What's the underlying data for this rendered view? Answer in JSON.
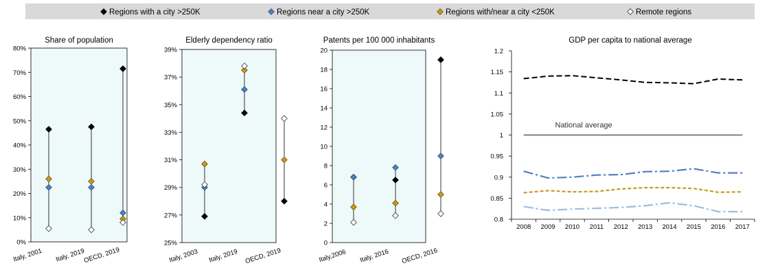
{
  "legend": {
    "items": [
      {
        "label": "Regions with a city >250K",
        "color": "#000000",
        "fill": "#000000"
      },
      {
        "label": "Regions near a city >250K",
        "color": "#2f4f7f",
        "fill": "#4f81bd"
      },
      {
        "label": "Regions with/near a city <250K",
        "color": "#6b4e00",
        "fill": "#c89a1e"
      },
      {
        "label": "Remote regions",
        "color": "#333333",
        "fill": "#ffffff"
      }
    ]
  },
  "colors": {
    "panel_bg": "#eef9f9",
    "legend_bg": "#d9d9d9",
    "with_city": "#000000",
    "near_city": "#4f81bd",
    "small_city": "#c89a1e",
    "remote": "#ffffff",
    "line_remote": "#9dbce0",
    "national_avg": "#7f7f7f"
  },
  "chart_data": [
    {
      "type": "scatter",
      "title": "Share of population",
      "categories": [
        "Italy, 2001",
        "Italy, 2019",
        "OECD, 2019"
      ],
      "ylim": [
        0,
        80
      ],
      "yticks": [
        0,
        10,
        20,
        30,
        40,
        50,
        60,
        70,
        80
      ],
      "ytick_labels": [
        "0%",
        "10%",
        "20%",
        "30%",
        "40%",
        "50%",
        "60%",
        "70%",
        "80%"
      ],
      "series": [
        {
          "name": "Regions with a city >250K",
          "values": [
            46.5,
            47.5,
            71.5
          ]
        },
        {
          "name": "Regions near a city >250K",
          "values": [
            22.5,
            22.5,
            12
          ]
        },
        {
          "name": "Regions with/near a city <250K",
          "values": [
            26,
            25,
            9.5
          ]
        },
        {
          "name": "Remote regions",
          "values": [
            5.5,
            5,
            8
          ]
        }
      ]
    },
    {
      "type": "scatter",
      "title": "Elderly dependency ratio",
      "categories": [
        "Italy, 2003",
        "Italy, 2019",
        "OECD, 2019"
      ],
      "ylim": [
        25,
        39
      ],
      "yticks": [
        25,
        27,
        29,
        31,
        33,
        35,
        37,
        39
      ],
      "ytick_labels": [
        "25%",
        "27%",
        "29%",
        "31%",
        "33%",
        "35%",
        "37%",
        "39%"
      ],
      "series": [
        {
          "name": "Regions with a city >250K",
          "values": [
            26.9,
            34.4,
            28
          ]
        },
        {
          "name": "Regions near a city >250K",
          "values": [
            29,
            36.1,
            null
          ]
        },
        {
          "name": "Regions with/near a city <250K",
          "values": [
            30.7,
            37.5,
            31
          ]
        },
        {
          "name": "Remote regions",
          "values": [
            29.2,
            37.8,
            34
          ]
        }
      ]
    },
    {
      "type": "scatter",
      "title": "Patents per 100 000 inhabitants",
      "categories": [
        "Italy,2006",
        "Italy, 2016",
        "OECD, 2016"
      ],
      "ylim": [
        0,
        20
      ],
      "yticks": [
        0,
        2,
        4,
        6,
        8,
        10,
        12,
        14,
        16,
        18,
        20
      ],
      "ytick_labels": [
        "0",
        "2",
        "4",
        "6",
        "8",
        "10",
        "12",
        "14",
        "16",
        "18",
        "20"
      ],
      "series": [
        {
          "name": "Regions with a city >250K",
          "values": [
            6.8,
            6.5,
            19
          ]
        },
        {
          "name": "Regions near a city >250K",
          "values": [
            6.8,
            7.8,
            9
          ]
        },
        {
          "name": "Regions with/near a city <250K",
          "values": [
            3.7,
            4.1,
            5
          ]
        },
        {
          "name": "Remote regions",
          "values": [
            2.1,
            2.8,
            3
          ]
        }
      ]
    },
    {
      "type": "line",
      "title": "GDP per capita to national average",
      "x": [
        "2008",
        "2009",
        "2010",
        "2011",
        "2012",
        "2013",
        "2014",
        "2015",
        "2016",
        "2017"
      ],
      "ylim": [
        0.8,
        1.2
      ],
      "yticks": [
        0.8,
        0.85,
        0.9,
        0.95,
        1,
        1.05,
        1.1,
        1.15,
        1.2
      ],
      "ytick_labels": [
        "0.8",
        "0.85",
        "0.9",
        "0.95",
        "1",
        "1.05",
        "1.1",
        "1.15",
        "1.2"
      ],
      "annotation": "National average",
      "series": [
        {
          "name": "Regions with a city >250K",
          "values": [
            1.134,
            1.14,
            1.141,
            1.136,
            1.131,
            1.125,
            1.124,
            1.122,
            1.133,
            1.131
          ]
        },
        {
          "name": "Regions near a city >250K",
          "values": [
            0.914,
            0.898,
            0.9,
            0.905,
            0.906,
            0.913,
            0.914,
            0.92,
            0.91,
            0.91
          ]
        },
        {
          "name": "Regions with/near a city <250K",
          "values": [
            0.863,
            0.868,
            0.865,
            0.866,
            0.872,
            0.875,
            0.875,
            0.873,
            0.864,
            0.865
          ]
        },
        {
          "name": "Remote regions",
          "values": [
            0.83,
            0.821,
            0.824,
            0.826,
            0.828,
            0.832,
            0.839,
            0.832,
            0.818,
            0.818
          ]
        },
        {
          "name": "National average",
          "values": [
            1,
            1,
            1,
            1,
            1,
            1,
            1,
            1,
            1,
            1
          ]
        }
      ]
    }
  ]
}
